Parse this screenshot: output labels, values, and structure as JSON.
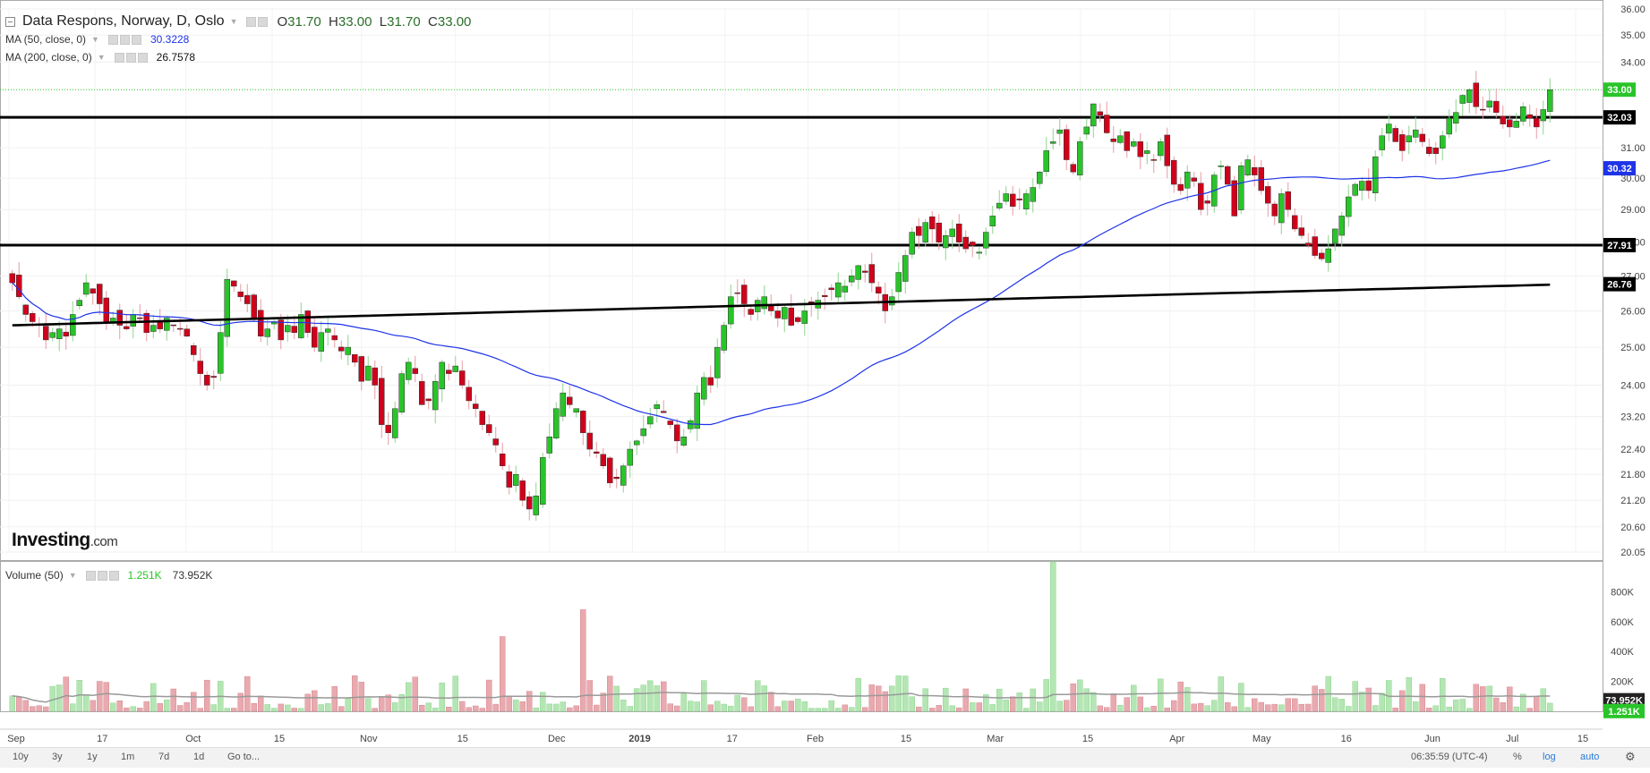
{
  "header": {
    "title": "Data Respons, Norway, D, Oslo",
    "ohlc": {
      "o_label": "O",
      "open": "31.70",
      "h_label": "H",
      "high": "33.00",
      "l_label": "L",
      "low": "31.70",
      "c_label": "C",
      "close": "33.00"
    },
    "ma50": {
      "label": "MA (50, close, 0)",
      "value": "30.3228",
      "color": "#1e33e8"
    },
    "ma200": {
      "label": "MA (200, close, 0)",
      "value": "26.7578",
      "color": "#000000"
    }
  },
  "volume_legend": {
    "label": "Volume (50)",
    "value1": "1.251K",
    "value2": "73.952K"
  },
  "logo": {
    "brand": "Investing",
    "suffix": ".com"
  },
  "bottom_bar": {
    "ranges": [
      "10y",
      "3y",
      "1y",
      "1m",
      "7d",
      "1d"
    ],
    "goto": "Go to...",
    "time": "06:35:59 (UTC-4)",
    "pct": "%",
    "log": "log",
    "auto": "auto"
  },
  "chart_data": {
    "type": "candlestick",
    "y_axis": {
      "scale": "log",
      "ticks": [
        "36.00",
        "35.00",
        "34.00",
        "33.00",
        "32.03",
        "31.00",
        "30.32",
        "30.00",
        "29.00",
        "28.00",
        "27.91",
        "27.00",
        "26.76",
        "26.00",
        "25.00",
        "24.00",
        "23.20",
        "22.40",
        "21.80",
        "21.20",
        "20.60",
        "20.05"
      ],
      "range": [
        20.05,
        36.0
      ]
    },
    "x_axis": {
      "ticks": [
        "Sep",
        "17",
        "Oct",
        "15",
        "Nov",
        "15",
        "Dec",
        "2019",
        "17",
        "Feb",
        "15",
        "Mar",
        "15",
        "Apr",
        "May",
        "16",
        "Jun",
        "Jul",
        "15"
      ]
    },
    "price_labels": [
      {
        "value": "33.00",
        "color": "#29c429"
      },
      {
        "value": "32.03",
        "color": "#000000"
      },
      {
        "value": "30.32",
        "color": "#1e33e8"
      },
      {
        "value": "27.91",
        "color": "#000000"
      },
      {
        "value": "26.76",
        "color": "#000000"
      }
    ],
    "horizontal_lines": [
      32.03,
      27.91
    ],
    "current_price_line": 33.0,
    "closes": [
      26.8,
      26.4,
      25.9,
      25.7,
      25.6,
      25.2,
      25.4,
      25.5,
      25.3,
      25.9,
      26.3,
      26.8,
      26.5,
      26.2,
      25.7,
      25.8,
      25.6,
      25.5,
      25.9,
      25.8,
      25.4,
      25.6,
      25.5,
      25.8,
      25.6,
      25.5,
      25.3,
      24.8,
      24.3,
      24.0,
      24.2,
      25.4,
      26.9,
      26.7,
      26.4,
      26.2,
      25.8,
      25.3,
      25.5,
      25.7,
      25.2,
      25.6,
      25.4,
      25.9,
      25.4,
      25.0,
      25.4,
      25.5,
      25.2,
      24.9,
      25.0,
      24.6,
      24.1,
      24.5,
      24.0,
      23.0,
      22.8,
      23.4,
      24.3,
      24.6,
      24.3,
      23.5,
      23.6,
      24.1,
      24.6,
      24.3,
      24.5,
      24.0,
      23.6,
      23.4,
      23.0,
      22.8,
      22.5,
      22.0,
      21.5,
      21.8,
      21.2,
      21.0,
      21.3,
      22.2,
      22.7,
      23.4,
      23.8,
      23.5,
      23.4,
      22.8,
      22.4,
      22.3,
      22.0,
      21.6,
      21.7,
      22.0,
      22.4,
      22.6,
      22.9,
      23.2,
      23.5,
      23.3,
      23.0,
      22.6,
      22.7,
      23.1,
      23.8,
      24.2,
      24.0,
      25.0,
      25.6,
      26.4,
      26.5,
      26.2,
      25.9,
      26.3,
      26.4,
      26.0,
      25.8,
      26.1,
      25.6,
      25.7,
      26.0,
      26.2,
      26.3,
      26.4,
      26.6,
      26.8,
      26.7,
      27.0,
      27.3,
      27.1,
      26.8,
      26.5,
      26.0,
      26.4,
      27.1,
      27.6,
      28.3,
      28.2,
      28.6,
      28.4,
      28.0,
      28.2,
      28.4,
      28.0,
      27.8,
      27.9,
      27.7,
      28.3,
      28.8,
      29.2,
      29.5,
      29.1,
      29.3,
      29.5,
      29.7,
      30.2,
      30.9,
      31.2,
      31.6,
      30.6,
      30.2,
      31.2,
      31.7,
      32.5,
      32.1,
      31.5,
      31.2,
      31.4,
      30.9,
      31.2,
      30.7,
      30.9,
      30.6,
      31.2,
      30.4,
      29.8,
      29.6,
      30.2,
      29.9,
      29.0,
      29.2,
      30.1,
      30.4,
      29.8,
      28.8,
      30.4,
      30.6,
      30.1,
      29.6,
      29.2,
      28.8,
      29.5,
      29.0,
      28.4,
      28.2,
      27.9,
      27.6,
      27.5,
      27.8,
      28.4,
      28.8,
      29.4,
      29.8,
      29.9,
      29.6,
      30.7,
      31.4,
      31.8,
      31.2,
      30.9,
      31.4,
      31.6,
      31.2,
      30.8,
      30.8,
      31.4,
      32.0,
      32.2,
      32.8,
      33.0,
      32.4,
      32.3,
      32.6,
      32.2,
      31.8,
      31.7,
      31.9,
      32.4,
      32.0,
      31.7,
      32.3,
      33.0
    ]
  },
  "volume_data": {
    "y_ticks": [
      "800K",
      "600K",
      "400K",
      "200K"
    ],
    "labels": [
      {
        "value": "73.952K",
        "color": "#333333"
      },
      {
        "value": "1.251K",
        "color": "#29c429"
      }
    ]
  }
}
